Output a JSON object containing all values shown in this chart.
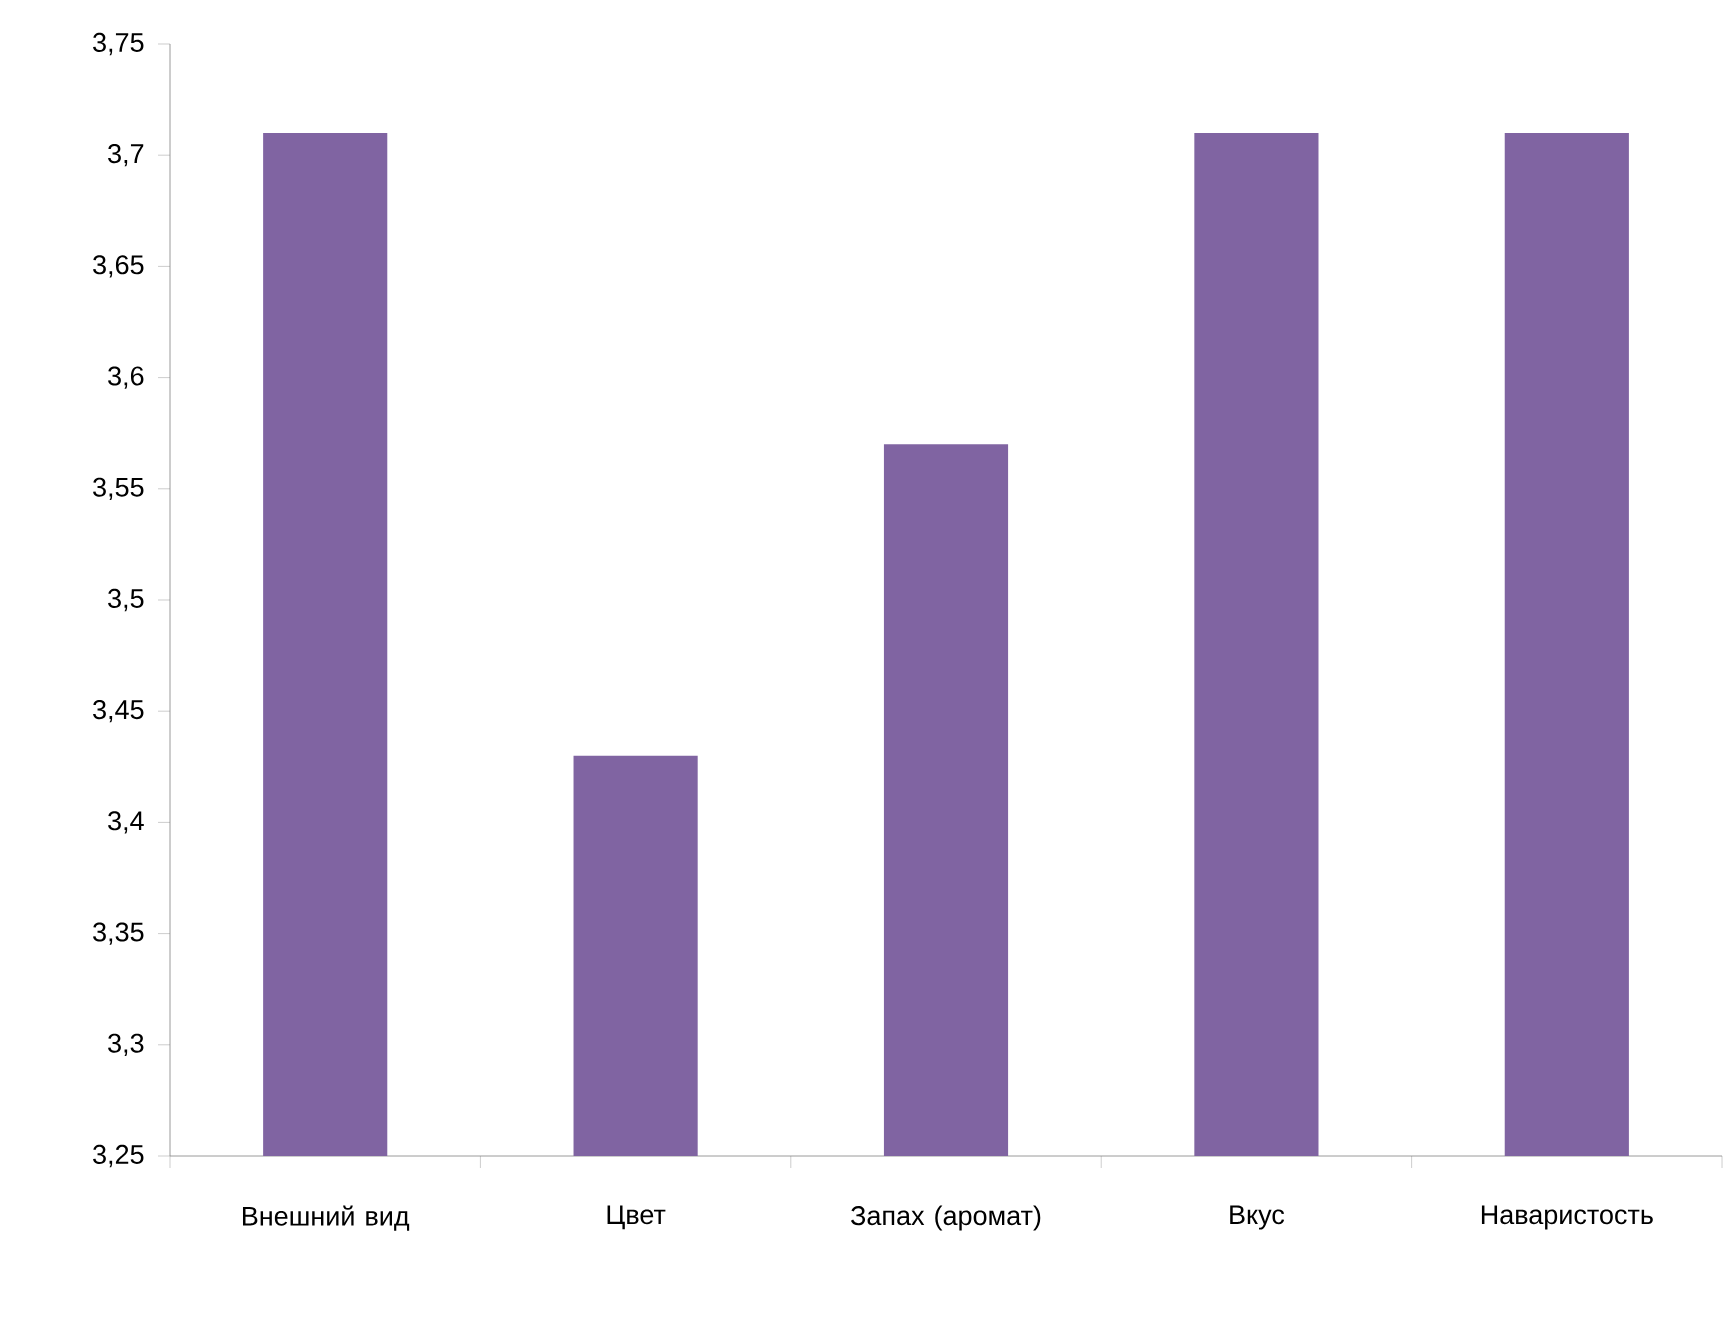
{
  "chart_data": {
    "type": "bar",
    "categories": [
      "Внешний вид",
      "Цвет",
      "Запах (аромат)",
      "Вкус",
      "Наваристость"
    ],
    "values": [
      3.71,
      3.43,
      3.57,
      3.71,
      3.71
    ],
    "color": "#8064a2",
    "ylim": [
      3.25,
      3.75
    ],
    "yticks": [
      {
        "value": 3.25,
        "label": "3,25"
      },
      {
        "value": 3.3,
        "label": "3,3"
      },
      {
        "value": 3.35,
        "label": "3,35"
      },
      {
        "value": 3.4,
        "label": "3,4"
      },
      {
        "value": 3.45,
        "label": "3,45"
      },
      {
        "value": 3.5,
        "label": "3,5"
      },
      {
        "value": 3.55,
        "label": "3,55"
      },
      {
        "value": 3.6,
        "label": "3,6"
      },
      {
        "value": 3.65,
        "label": "3,65"
      },
      {
        "value": 3.7,
        "label": "3,7"
      },
      {
        "value": 3.75,
        "label": "3,75"
      }
    ],
    "grid": false
  }
}
